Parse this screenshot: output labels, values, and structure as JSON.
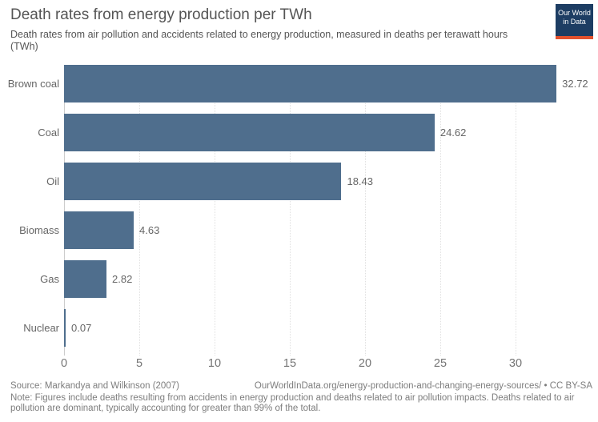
{
  "header": {
    "title": "Death rates from energy production per TWh",
    "subtitle": "Death rates from air pollution and accidents related to energy production, measured in deaths per terawatt hours (TWh)"
  },
  "logo": {
    "line1": "Our World",
    "line2": "in Data",
    "bg_color": "#1d3d63",
    "accent_color": "#e2512e"
  },
  "chart_data": {
    "type": "bar",
    "orientation": "horizontal",
    "title": "Death rates from energy production per TWh",
    "categories": [
      "Brown coal",
      "Coal",
      "Oil",
      "Biomass",
      "Gas",
      "Nuclear"
    ],
    "values": [
      32.72,
      24.62,
      18.43,
      4.63,
      2.82,
      0.07
    ],
    "value_labels": [
      "32.72",
      "24.62",
      "18.43",
      "4.63",
      "2.82",
      "0.07"
    ],
    "xlabel": "",
    "ylabel": "",
    "xticks": [
      0,
      5,
      10,
      15,
      20,
      25,
      30
    ],
    "xlim": [
      0,
      34.8
    ],
    "grid": "vertical-dotted",
    "legend": "none",
    "bar_color": "#4f6e8d"
  },
  "footer": {
    "source": "Source: Markandya and Wilkinson (2007)",
    "link": "OurWorldInData.org/energy-production-and-changing-energy-sources/ • CC BY-SA",
    "note": "Note: Figures include deaths resulting from accidents in energy production and deaths related to air pollution impacts. Deaths related to air pollution are dominant, typically accounting for greater than 99% of the total."
  }
}
